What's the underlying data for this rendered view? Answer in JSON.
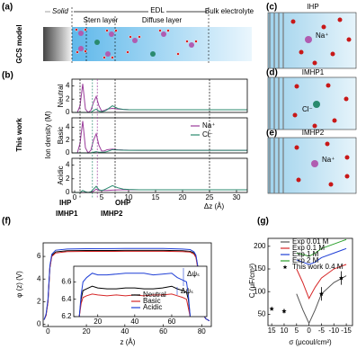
{
  "figure": {
    "panel_labels": [
      "(a)",
      "(b)",
      "(c)",
      "(d)",
      "(e)",
      "(f)",
      "(g)"
    ],
    "a": {
      "side_label": "GCS model",
      "solid": "Solid",
      "edl": "EDL",
      "bulk": "Bulk electrolyte",
      "stern": "Stern layer",
      "diffuse": "Diffuse layer"
    },
    "b": {
      "side_label": "This work"
    },
    "c": {
      "title": "IHP",
      "ion": "Na⁺"
    },
    "d": {
      "title": "IMHP1",
      "ion": "Cl⁻"
    },
    "e": {
      "title": "IMHP2",
      "ion": "Na⁺"
    }
  },
  "chart_data": [
    {
      "type": "line",
      "title": "Neutral",
      "x": [
        0,
        0.5,
        1,
        1.5,
        2,
        2.5,
        3,
        3.5,
        4,
        4.5,
        5,
        5.5,
        6,
        7,
        8,
        9,
        10,
        12,
        15,
        20,
        25,
        30,
        32
      ],
      "xlim": [
        -0.5,
        32
      ],
      "ylim": [
        0,
        5
      ],
      "yticks": [
        0,
        2,
        4
      ],
      "series": [
        {
          "color": "#9b3d9b",
          "values": [
            0,
            0,
            1,
            4.3,
            0.5,
            0,
            0.3,
            1.5,
            2.4,
            1.0,
            0.2,
            0.3,
            0.5,
            0.6,
            0.5,
            0.45,
            0.42,
            0.4,
            0.4,
            0.4,
            0.4,
            0.4,
            0.4
          ]
        },
        {
          "color": "#2a8a6e",
          "values": [
            0,
            0,
            0,
            0,
            0,
            0,
            0,
            0.3,
            0.5,
            0.2,
            0.1,
            0.2,
            0.4,
            1.0,
            0.6,
            0.45,
            0.4,
            0.4,
            0.4,
            0.4,
            0.4,
            0.4,
            0.4
          ]
        }
      ]
    },
    {
      "type": "line",
      "title": "Basic",
      "ylabel": "Ion density (M)",
      "legend": true,
      "x": [
        0,
        0.5,
        1,
        1.5,
        2,
        2.5,
        3,
        3.5,
        4,
        4.5,
        5,
        5.5,
        6,
        7,
        8,
        9,
        10,
        12,
        15,
        20,
        25,
        30,
        32
      ],
      "xlim": [
        -0.5,
        32
      ],
      "ylim": [
        0,
        5.5
      ],
      "yticks": [
        0,
        2,
        4
      ],
      "series": [
        {
          "name": "Na⁺",
          "color": "#9b3d9b",
          "values": [
            0,
            0,
            1.5,
            5,
            0.8,
            0,
            0.4,
            2,
            3,
            1.2,
            0.3,
            0.3,
            0.5,
            0.6,
            0.5,
            0.45,
            0.42,
            0.4,
            0.4,
            0.4,
            0.4,
            0.4,
            0.4
          ]
        },
        {
          "name": "Cl⁻",
          "color": "#2a8a6e",
          "values": [
            0,
            0,
            0,
            0,
            0,
            0,
            0,
            0.1,
            0.2,
            0.1,
            0.1,
            0.1,
            0.2,
            0.5,
            0.45,
            0.42,
            0.4,
            0.4,
            0.4,
            0.4,
            0.4,
            0.4,
            0.4
          ]
        }
      ]
    },
    {
      "type": "line",
      "title": "Acidic",
      "xlabel": "Δz (Å)",
      "x": [
        0,
        0.5,
        1,
        1.5,
        2,
        2.5,
        3,
        3.5,
        4,
        4.5,
        5,
        5.5,
        6,
        7,
        8,
        9,
        10,
        12,
        15,
        20,
        25,
        30,
        32
      ],
      "xlim": [
        -0.5,
        32
      ],
      "ylim": [
        0,
        5
      ],
      "yticks": [
        0,
        2,
        4
      ],
      "xticks": [
        0,
        5,
        10,
        15,
        20,
        25,
        30
      ],
      "series": [
        {
          "color": "#9b3d9b",
          "values": [
            0,
            0,
            0,
            0,
            0,
            0,
            0,
            0.2,
            0.5,
            0.3,
            0.3,
            0.3,
            0.3,
            0.35,
            0.38,
            0.4,
            0.4,
            0.4,
            0.4,
            0.4,
            0.4,
            0.4,
            0.4
          ]
        },
        {
          "color": "#2a8a6e",
          "values": [
            0,
            0,
            0,
            0.3,
            0.1,
            0,
            0.1,
            0.5,
            0.9,
            0.4,
            0.3,
            0.4,
            0.6,
            1.0,
            0.7,
            0.5,
            0.45,
            0.4,
            0.4,
            0.4,
            0.4,
            0.4,
            0.4
          ]
        }
      ],
      "markers": [
        {
          "x": 1,
          "label": "IHP",
          "color": "#000000"
        },
        {
          "x": 3.3,
          "label": "IMHP1",
          "color": "#2a8a6e"
        },
        {
          "x": 4.2,
          "label": "IMHP2",
          "color": "#9b3d9b"
        },
        {
          "x": 7.5,
          "label": "OHP",
          "color": "#000000"
        },
        {
          "x": 25,
          "color": "#000000"
        }
      ]
    },
    {
      "type": "line",
      "xlabel": "z (Å)",
      "ylabel": "φ (z) (V)",
      "x": [
        -2,
        -1,
        0,
        1,
        2,
        4,
        10,
        20,
        40,
        60,
        70,
        74,
        76,
        77,
        78,
        79,
        80,
        82,
        84
      ],
      "xlim": [
        -2.5,
        85
      ],
      "ylim": [
        -0.2,
        7.2
      ],
      "xticks": [
        0,
        20,
        40,
        60,
        80
      ],
      "yticks": [
        0,
        2,
        4,
        6
      ],
      "series": [
        {
          "color": "#000000",
          "values": [
            0.4,
            0.8,
            2,
            5,
            6.1,
            6.4,
            6.5,
            6.52,
            6.53,
            6.53,
            6.5,
            6.45,
            6.3,
            6,
            5,
            3,
            1.2,
            0.5,
            0.3
          ]
        },
        {
          "color": "#d62728",
          "values": [
            0.4,
            0.8,
            2,
            5,
            6.0,
            6.3,
            6.42,
            6.44,
            6.45,
            6.45,
            6.42,
            6.38,
            6.2,
            5.9,
            4.9,
            2.9,
            1.1,
            0.5,
            0.3
          ]
        },
        {
          "color": "#1f3fd6",
          "values": [
            0.4,
            0.9,
            2.2,
            5.2,
            6.2,
            6.55,
            6.65,
            6.68,
            6.7,
            6.7,
            6.65,
            6.6,
            6.4,
            6.1,
            5.1,
            3.1,
            1.3,
            0.5,
            0.3
          ]
        }
      ]
    },
    {
      "type": "line",
      "legend": true,
      "x": [
        10,
        11,
        12,
        14,
        17,
        20,
        25,
        30,
        35,
        40,
        45,
        50,
        55,
        60,
        63,
        66,
        68,
        69,
        70
      ],
      "xlim": [
        7,
        79
      ],
      "ylim": [
        6.2,
        6.78
      ],
      "xticks": [
        20,
        40,
        60
      ],
      "yticks": [
        6.2,
        6.4,
        6.6
      ],
      "series": [
        {
          "name": "Neutral",
          "color": "#000000",
          "values": [
            6.2,
            6.4,
            6.5,
            6.52,
            6.55,
            6.53,
            6.52,
            6.52,
            6.53,
            6.53,
            6.52,
            6.52,
            6.53,
            6.55,
            6.52,
            6.5,
            6.48,
            6.4,
            6.2
          ]
        },
        {
          "name": "Basic",
          "color": "#d62728",
          "values": [
            6.2,
            6.35,
            6.42,
            6.44,
            6.46,
            6.45,
            6.44,
            6.45,
            6.44,
            6.45,
            6.44,
            6.45,
            6.45,
            6.46,
            6.44,
            6.42,
            6.4,
            6.3,
            6.2
          ]
        },
        {
          "name": "Acidic",
          "color": "#1f3fd6",
          "values": [
            6.2,
            6.45,
            6.6,
            6.65,
            6.7,
            6.68,
            6.68,
            6.69,
            6.7,
            6.7,
            6.7,
            6.68,
            6.69,
            6.7,
            6.65,
            6.62,
            6.6,
            6.45,
            6.2
          ]
        }
      ],
      "annotations": [
        "Δψₛ",
        "Δψₛ"
      ]
    },
    {
      "type": "line",
      "xlabel": "σ (μcoul/cm²)",
      "ylabel": "C (μF/cm²)",
      "legend": true,
      "x": [
        5,
        2.5,
        0,
        -2.5,
        -5,
        -10,
        -15
      ],
      "xlim": [
        16.5,
        -17.5
      ],
      "ylim": [
        25,
        217.5
      ],
      "xticks": [
        15,
        10,
        5,
        0,
        -5,
        -10,
        -15
      ],
      "yticks": [
        50,
        100,
        150,
        200
      ],
      "series": [
        {
          "name": "Exp 0.01 M",
          "color": "#555555",
          "values": [
            95,
            60,
            30,
            60,
            95,
            120,
            135
          ]
        },
        {
          "name": "Exp 0.1 M",
          "color": "#d62728",
          "values": [
            150,
            120,
            85,
            110,
            130,
            150,
            160
          ]
        },
        {
          "name": "Exp 1 M",
          "color": "#1f3fd6",
          "values": [
            170,
            165,
            160,
            165,
            175,
            185,
            195
          ]
        },
        {
          "name": "Exp 2 M",
          "color": "#2ca02c",
          "values": [
            185,
            182,
            178,
            185,
            195,
            205,
            215
          ]
        },
        {
          "name": "This work 0.4 M",
          "color": "#000000",
          "marker": "star",
          "x": [
            15,
            10,
            -5,
            -13
          ],
          "values": [
            62,
            57,
            95,
            130
          ],
          "errors": [
            3,
            5,
            15,
            15
          ]
        }
      ]
    }
  ]
}
